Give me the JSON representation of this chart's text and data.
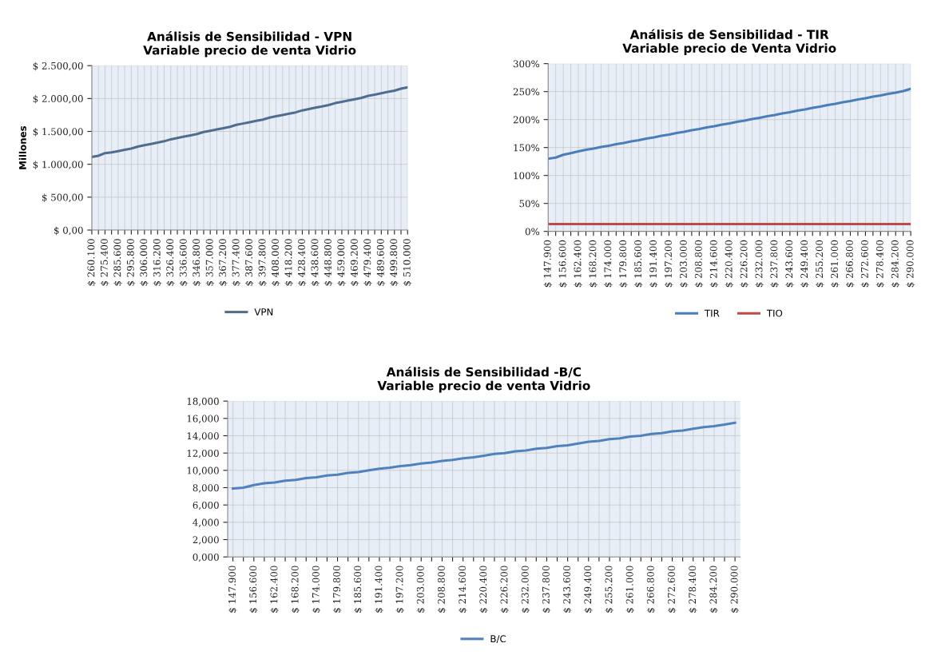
{
  "chart_data": [
    {
      "type": "line",
      "title": "Análisis de Sensibilidad - VPN",
      "subtitle": "Variable precio de venta Vidrio",
      "ylabel": "Millones",
      "categories": [
        "$ 260.100",
        null,
        "$ 275.400",
        null,
        "$ 285.600",
        null,
        "$ 295.800",
        null,
        "$ 306.000",
        null,
        "$ 316.200",
        null,
        "$ 326.400",
        null,
        "$ 336.600",
        null,
        "$ 346.800",
        null,
        "$ 357.000",
        null,
        "$ 367.200",
        null,
        "$ 377.400",
        null,
        "$ 387.600",
        null,
        "$ 397.800",
        null,
        "$ 408.000",
        null,
        "$ 418.200",
        null,
        "$ 428.400",
        null,
        "$ 438.600",
        null,
        "$ 448.800",
        null,
        "$ 459.000",
        null,
        "$ 469.200",
        null,
        "$ 479.400",
        null,
        "$ 489.600",
        null,
        "$ 499.800",
        null,
        "$ 510.000"
      ],
      "series": [
        {
          "name": "VPN",
          "color": "#4f6d8f",
          "values": [
            1110,
            1130,
            1170,
            1180,
            1200,
            1220,
            1240,
            1270,
            1290,
            1310,
            1330,
            1350,
            1380,
            1400,
            1420,
            1440,
            1460,
            1490,
            1510,
            1530,
            1550,
            1570,
            1600,
            1620,
            1640,
            1660,
            1680,
            1710,
            1730,
            1750,
            1770,
            1790,
            1820,
            1840,
            1860,
            1880,
            1900,
            1930,
            1950,
            1970,
            1990,
            2010,
            2040,
            2060,
            2080,
            2100,
            2120,
            2150,
            2170
          ]
        }
      ],
      "ylim": [
        0,
        2500
      ],
      "yticks": [
        {
          "value": 0,
          "label": "$ 0,00"
        },
        {
          "value": 500,
          "label": "$ 500,00"
        },
        {
          "value": 1000,
          "label": "$ 1.000,00"
        },
        {
          "value": 1500,
          "label": "$ 1.500,00"
        },
        {
          "value": 2000,
          "label": "$ 2.000,00"
        },
        {
          "value": 2500,
          "label": "$ 2.500,00"
        }
      ],
      "grid": true,
      "legend": "bottom",
      "marker": "none",
      "line_style": "solid"
    },
    {
      "type": "line",
      "title": "Análisis de Sensibilidad - TIR",
      "subtitle": "Variable precio de Venta Vidrio",
      "categories": [
        "$ 147.900",
        null,
        "$ 156.600",
        null,
        "$ 162.400",
        null,
        "$ 168.200",
        null,
        "$ 174.000",
        null,
        "$ 179.800",
        null,
        "$ 185.600",
        null,
        "$ 191.400",
        null,
        "$ 197.200",
        null,
        "$ 203.000",
        null,
        "$ 208.800",
        null,
        "$ 214.600",
        null,
        "$ 220.400",
        null,
        "$ 226.200",
        null,
        "$ 232.000",
        null,
        "$ 237.800",
        null,
        "$ 243.600",
        null,
        "$ 249.400",
        null,
        "$ 255.200",
        null,
        "$ 261.000",
        null,
        "$ 266.800",
        null,
        "$ 272.600",
        null,
        "$ 278.400",
        null,
        "$ 284.200",
        null,
        "$ 290.000"
      ],
      "series": [
        {
          "name": "TIR",
          "color": "#4a7ebb",
          "values": [
            130,
            132,
            137,
            140,
            143,
            146,
            148,
            151,
            153,
            156,
            158,
            161,
            163,
            166,
            168,
            171,
            173,
            176,
            178,
            181,
            183,
            186,
            188,
            191,
            193,
            196,
            198,
            201,
            203,
            206,
            208,
            211,
            213,
            216,
            218,
            221,
            223,
            226,
            228,
            231,
            233,
            236,
            238,
            241,
            243,
            246,
            248,
            251,
            255
          ]
        },
        {
          "name": "TIO",
          "color": "#be4b48",
          "values": [
            13,
            13,
            13,
            13,
            13,
            13,
            13,
            13,
            13,
            13,
            13,
            13,
            13,
            13,
            13,
            13,
            13,
            13,
            13,
            13,
            13,
            13,
            13,
            13,
            13,
            13,
            13,
            13,
            13,
            13,
            13,
            13,
            13,
            13,
            13,
            13,
            13,
            13,
            13,
            13,
            13,
            13,
            13,
            13,
            13,
            13,
            13,
            13,
            13
          ]
        }
      ],
      "ylim": [
        0,
        300
      ],
      "yticks": [
        {
          "value": 0,
          "label": "0%"
        },
        {
          "value": 50,
          "label": "50%"
        },
        {
          "value": 100,
          "label": "100%"
        },
        {
          "value": 150,
          "label": "150%"
        },
        {
          "value": 200,
          "label": "200%"
        },
        {
          "value": 250,
          "label": "250%"
        },
        {
          "value": 300,
          "label": "300%"
        }
      ],
      "grid": true,
      "legend": "bottom",
      "marker": "none",
      "line_style": "solid"
    },
    {
      "type": "line",
      "title": "Análisis de Sensibilidad -B/C",
      "subtitle": "Variable precio de venta Vidrio",
      "categories": [
        "$ 147.900",
        null,
        "$ 156.600",
        null,
        "$ 162.400",
        null,
        "$ 168.200",
        null,
        "$ 174.000",
        null,
        "$ 179.800",
        null,
        "$ 185.600",
        null,
        "$ 191.400",
        null,
        "$ 197.200",
        null,
        "$ 203.000",
        null,
        "$ 208.800",
        null,
        "$ 214.600",
        null,
        "$ 220.400",
        null,
        "$ 226.200",
        null,
        "$ 232.000",
        null,
        "$ 237.800",
        null,
        "$ 243.600",
        null,
        "$ 249.400",
        null,
        "$ 255.200",
        null,
        "$ 261.000",
        null,
        "$ 266.800",
        null,
        "$ 272.600",
        null,
        "$ 278.400",
        null,
        "$ 284.200",
        null,
        "$ 290.000"
      ],
      "series": [
        {
          "name": "B/C",
          "color": "#4f81bd",
          "values": [
            7.9,
            8.0,
            8.3,
            8.5,
            8.6,
            8.8,
            8.9,
            9.1,
            9.2,
            9.4,
            9.5,
            9.7,
            9.8,
            10.0,
            10.2,
            10.3,
            10.5,
            10.6,
            10.8,
            10.9,
            11.1,
            11.2,
            11.4,
            11.5,
            11.7,
            11.9,
            12.0,
            12.2,
            12.3,
            12.5,
            12.6,
            12.8,
            12.9,
            13.1,
            13.3,
            13.4,
            13.6,
            13.7,
            13.9,
            14.0,
            14.2,
            14.3,
            14.5,
            14.6,
            14.8,
            15.0,
            15.1,
            15.3,
            15.5
          ]
        }
      ],
      "ylim": [
        0,
        18
      ],
      "yticks": [
        {
          "value": 0,
          "label": "0,000"
        },
        {
          "value": 2,
          "label": "2,000"
        },
        {
          "value": 4,
          "label": "4,000"
        },
        {
          "value": 6,
          "label": "6,000"
        },
        {
          "value": 8,
          "label": "8,000"
        },
        {
          "value": 10,
          "label": "10,000"
        },
        {
          "value": 12,
          "label": "12,000"
        },
        {
          "value": 14,
          "label": "14,000"
        },
        {
          "value": 16,
          "label": "16,000"
        },
        {
          "value": 18,
          "label": "18,000"
        }
      ],
      "grid": true,
      "legend": "bottom",
      "marker": "none",
      "line_style": "solid"
    }
  ]
}
